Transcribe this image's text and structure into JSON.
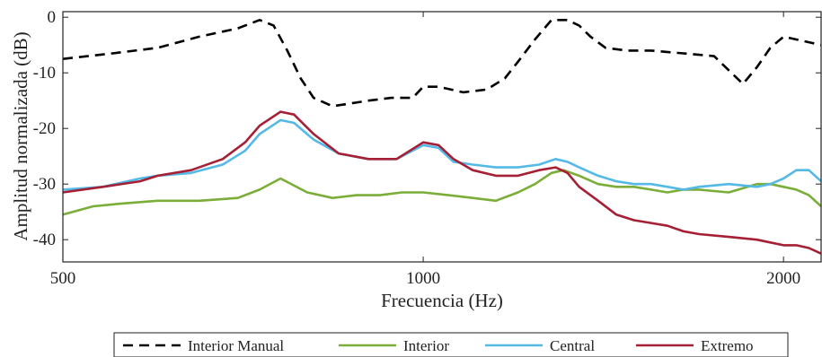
{
  "chart_data": {
    "type": "line",
    "title": "",
    "xlabel": "Frecuencia (Hz)",
    "ylabel": "Amplitud normalizada (dB)",
    "xscale": "log",
    "xlim": [
      500,
      2150
    ],
    "ylim": [
      -44,
      1
    ],
    "xticks": [
      500,
      1000,
      2000
    ],
    "xtick_labels": [
      "500",
      "1000",
      "2000"
    ],
    "yticks": [
      0,
      -10,
      -20,
      -30,
      -40
    ],
    "ytick_labels": [
      "0",
      "-10",
      "-20",
      "-30",
      "-40"
    ],
    "grid": false,
    "legend_position": "bottom",
    "series": [
      {
        "name": "Interior Manual",
        "color": "#000000",
        "dash": "dashed",
        "x": [
          500,
          550,
          600,
          650,
          700,
          730,
          750,
          770,
          790,
          810,
          840,
          870,
          900,
          940,
          980,
          1000,
          1030,
          1080,
          1130,
          1170,
          1200,
          1240,
          1280,
          1320,
          1350,
          1380,
          1420,
          1480,
          1550,
          1650,
          1750,
          1850,
          1900,
          1950,
          2000,
          2050,
          2100,
          2150
        ],
        "y": [
          -7.5,
          -6.5,
          -5.5,
          -3.5,
          -2,
          -0.5,
          -1.5,
          -6,
          -11,
          -14.5,
          -16,
          -15.5,
          -15,
          -14.5,
          -14.5,
          -12.5,
          -12.5,
          -13.5,
          -13,
          -11,
          -8,
          -4,
          -0.5,
          -0.5,
          -1.5,
          -3.5,
          -5.5,
          -6,
          -6,
          -6.5,
          -7,
          -12,
          -9,
          -5.5,
          -3.5,
          -4,
          -4.5,
          -5
        ]
      },
      {
        "name": "Interior",
        "color": "#7aae38",
        "dash": "solid",
        "x": [
          500,
          530,
          560,
          600,
          650,
          700,
          730,
          760,
          800,
          840,
          880,
          920,
          960,
          1000,
          1050,
          1100,
          1150,
          1200,
          1240,
          1280,
          1310,
          1350,
          1400,
          1450,
          1500,
          1550,
          1600,
          1650,
          1700,
          1800,
          1900,
          1950,
          2000,
          2050,
          2100,
          2150
        ],
        "y": [
          -35.5,
          -34,
          -33.5,
          -33,
          -33,
          -32.5,
          -31,
          -29,
          -31.5,
          -32.5,
          -32,
          -32,
          -31.5,
          -31.5,
          -32,
          -32.5,
          -33,
          -31.5,
          -30,
          -28,
          -27.5,
          -28.5,
          -30,
          -30.5,
          -30.5,
          -31,
          -31.5,
          -31,
          -31,
          -31.5,
          -30,
          -30,
          -30.5,
          -31,
          -32,
          -34
        ]
      },
      {
        "name": "Central",
        "color": "#55b9e6",
        "dash": "solid",
        "x": [
          500,
          540,
          580,
          600,
          640,
          680,
          710,
          730,
          760,
          780,
          810,
          850,
          900,
          950,
          1000,
          1030,
          1060,
          1100,
          1150,
          1200,
          1250,
          1290,
          1320,
          1350,
          1400,
          1450,
          1500,
          1550,
          1600,
          1650,
          1700,
          1800,
          1900,
          1950,
          2000,
          2050,
          2100,
          2150
        ],
        "y": [
          -31,
          -30.5,
          -29,
          -28.5,
          -28,
          -26.5,
          -24,
          -21,
          -18.5,
          -19,
          -22,
          -24.5,
          -25.5,
          -25.5,
          -23,
          -23.5,
          -26,
          -26.5,
          -27,
          -27,
          -26.5,
          -25.5,
          -26,
          -27,
          -28.5,
          -29.5,
          -30,
          -30,
          -30.5,
          -31,
          -30.5,
          -30,
          -30.5,
          -30,
          -29,
          -27.5,
          -27.5,
          -29.5
        ]
      },
      {
        "name": "Extremo",
        "color": "#a52035",
        "dash": "solid",
        "x": [
          500,
          540,
          580,
          600,
          640,
          680,
          710,
          730,
          760,
          780,
          810,
          850,
          900,
          950,
          1000,
          1030,
          1060,
          1100,
          1150,
          1200,
          1250,
          1290,
          1320,
          1350,
          1400,
          1450,
          1500,
          1550,
          1600,
          1650,
          1700,
          1800,
          1900,
          1950,
          2000,
          2050,
          2100,
          2150
        ],
        "y": [
          -31.5,
          -30.5,
          -29.5,
          -28.5,
          -27.5,
          -25.5,
          -22.5,
          -19.5,
          -17,
          -17.5,
          -21,
          -24.5,
          -25.5,
          -25.5,
          -22.5,
          -23,
          -25.5,
          -27.5,
          -28.5,
          -28.5,
          -27.5,
          -27,
          -28,
          -30.5,
          -33,
          -35.5,
          -36.5,
          -37,
          -37.5,
          -38.5,
          -39,
          -39.5,
          -40,
          -40.5,
          -41,
          -41,
          -41.5,
          -42.5
        ]
      }
    ]
  }
}
